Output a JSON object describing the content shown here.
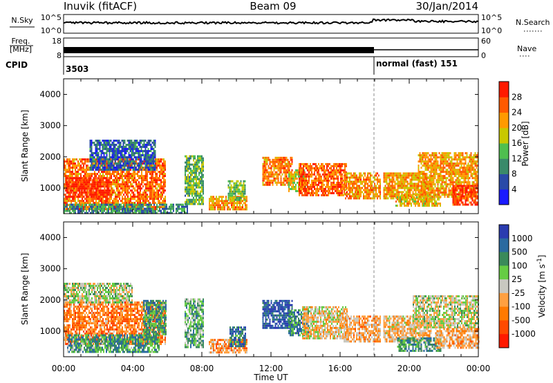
{
  "header": {
    "station": "Inuvik (fitACF)",
    "beam": "Beam 09",
    "date": "30/Jan/2014"
  },
  "status_panels": {
    "nsky_label": "N.Sky",
    "nsky_ticks": [
      "10^5",
      "10^0"
    ],
    "nsearch_label": "N.Search",
    "freq_label_line1": "Freq.",
    "freq_label_line2": "[MHz]",
    "freq_ticks": [
      "18",
      "8"
    ],
    "nave_ticks": [
      "60",
      "0"
    ],
    "nave_label": "Nave",
    "cpid_label": "CPID",
    "cpid_start": "3503",
    "cpid_mode": "normal (fast) 151"
  },
  "chart_data": [
    {
      "type": "heatmap",
      "parameter": "power",
      "xlabel": "Time UT",
      "ylabel": "Slant Range [km]",
      "colorbar_label": "Power [dB]",
      "x_ticks": [
        "00:00",
        "04:00",
        "08:00",
        "12:00",
        "16:00",
        "20:00",
        "00:00"
      ],
      "x_range_hours": [
        0,
        24
      ],
      "y_ticks": [
        1000,
        2000,
        3000,
        4000
      ],
      "ylim": [
        180,
        4500
      ],
      "colorbar": {
        "ticks": [
          4,
          8,
          12,
          16,
          20,
          24,
          28
        ],
        "range": [
          0,
          32
        ],
        "colors": [
          "#1a1aff",
          "#2a4aa8",
          "#3a8a6a",
          "#4fbf4f",
          "#c8c800",
          "#ff9a00",
          "#ff5a00",
          "#ff1a00"
        ]
      },
      "mode_change_hour": 18.0,
      "echo_regions": [
        {
          "t0": 0.0,
          "t1": 5.9,
          "r0": 350,
          "r1": 1950,
          "level": 0.78
        },
        {
          "t0": 0.1,
          "t1": 2.6,
          "r0": 700,
          "r1": 1350,
          "level": 0.95
        },
        {
          "t0": 1.5,
          "t1": 5.3,
          "r0": 1600,
          "r1": 2550,
          "level": 0.22
        },
        {
          "t0": 0.0,
          "t1": 7.2,
          "r0": 200,
          "r1": 500,
          "level": 0.32
        },
        {
          "t0": 7.0,
          "t1": 8.1,
          "r0": 480,
          "r1": 2050,
          "level": 0.42
        },
        {
          "t0": 8.4,
          "t1": 10.6,
          "r0": 330,
          "r1": 750,
          "level": 0.72
        },
        {
          "t0": 9.5,
          "t1": 10.5,
          "r0": 600,
          "r1": 1250,
          "level": 0.45
        },
        {
          "t0": 11.5,
          "t1": 13.2,
          "r0": 1100,
          "r1": 2000,
          "level": 0.75
        },
        {
          "t0": 13.0,
          "t1": 14.0,
          "r0": 900,
          "r1": 1600,
          "level": 0.55
        },
        {
          "t0": 13.6,
          "t1": 16.4,
          "r0": 800,
          "r1": 1800,
          "level": 0.8
        },
        {
          "t0": 16.2,
          "t1": 18.3,
          "r0": 700,
          "r1": 1500,
          "level": 0.72
        },
        {
          "t0": 18.5,
          "t1": 21.3,
          "r0": 650,
          "r1": 1500,
          "level": 0.68
        },
        {
          "t0": 19.2,
          "t1": 21.8,
          "r0": 450,
          "r1": 800,
          "level": 0.62
        },
        {
          "t0": 20.5,
          "t1": 24.0,
          "r0": 700,
          "r1": 2150,
          "level": 0.7
        },
        {
          "t0": 22.5,
          "t1": 24.0,
          "r0": 450,
          "r1": 1100,
          "level": 0.9
        }
      ]
    },
    {
      "type": "heatmap",
      "parameter": "velocity",
      "xlabel": "Time UT",
      "ylabel": "Slant Range [km]",
      "colorbar_label": "Velocity [m s^-1]",
      "x_ticks": [
        "00:00",
        "04:00",
        "08:00",
        "12:00",
        "16:00",
        "20:00",
        "00:00"
      ],
      "x_range_hours": [
        0,
        24
      ],
      "y_ticks": [
        1000,
        2000,
        3000,
        4000
      ],
      "ylim": [
        180,
        4500
      ],
      "colorbar": {
        "ticks": [
          "1000",
          "500",
          "100",
          "25",
          "-25",
          "-100",
          "-500",
          "-1000"
        ],
        "colors": [
          "#2a3cb0",
          "#2a6aa0",
          "#3a8a5a",
          "#66cc44",
          "#c8c8c0",
          "#ffa040",
          "#ff7a00",
          "#ff4a00",
          "#ff1a00"
        ]
      },
      "mode_change_hour": 18.0,
      "echo_regions": [
        {
          "t0": 0.0,
          "t1": 5.9,
          "r0": 600,
          "r1": 1950,
          "level": 0.72
        },
        {
          "t0": 0.0,
          "t1": 4.0,
          "r0": 1900,
          "r1": 2550,
          "level": 0.45
        },
        {
          "t0": 0.2,
          "t1": 5.5,
          "r0": 350,
          "r1": 900,
          "level": 0.3
        },
        {
          "t0": 4.6,
          "t1": 5.9,
          "r0": 900,
          "r1": 2000,
          "level": 0.28
        },
        {
          "t0": 7.0,
          "t1": 8.1,
          "r0": 480,
          "r1": 2050,
          "level": 0.35
        },
        {
          "t0": 8.4,
          "t1": 10.6,
          "r0": 330,
          "r1": 750,
          "level": 0.68
        },
        {
          "t0": 9.6,
          "t1": 10.5,
          "r0": 500,
          "r1": 1150,
          "level": 0.2
        },
        {
          "t0": 11.5,
          "t1": 13.2,
          "r0": 1100,
          "r1": 2000,
          "level": 0.08
        },
        {
          "t0": 13.0,
          "t1": 14.2,
          "r0": 900,
          "r1": 1700,
          "level": 0.25
        },
        {
          "t0": 13.8,
          "t1": 16.4,
          "r0": 800,
          "r1": 1800,
          "level": 0.55
        },
        {
          "t0": 16.2,
          "t1": 18.3,
          "r0": 700,
          "r1": 1500,
          "level": 0.62
        },
        {
          "t0": 18.5,
          "t1": 21.3,
          "r0": 650,
          "r1": 1500,
          "level": 0.6
        },
        {
          "t0": 19.3,
          "t1": 21.8,
          "r0": 400,
          "r1": 800,
          "level": 0.3
        },
        {
          "t0": 20.2,
          "t1": 24.0,
          "r0": 1100,
          "r1": 2150,
          "level": 0.48
        },
        {
          "t0": 21.5,
          "t1": 24.0,
          "r0": 500,
          "r1": 1100,
          "level": 0.62
        }
      ]
    }
  ]
}
